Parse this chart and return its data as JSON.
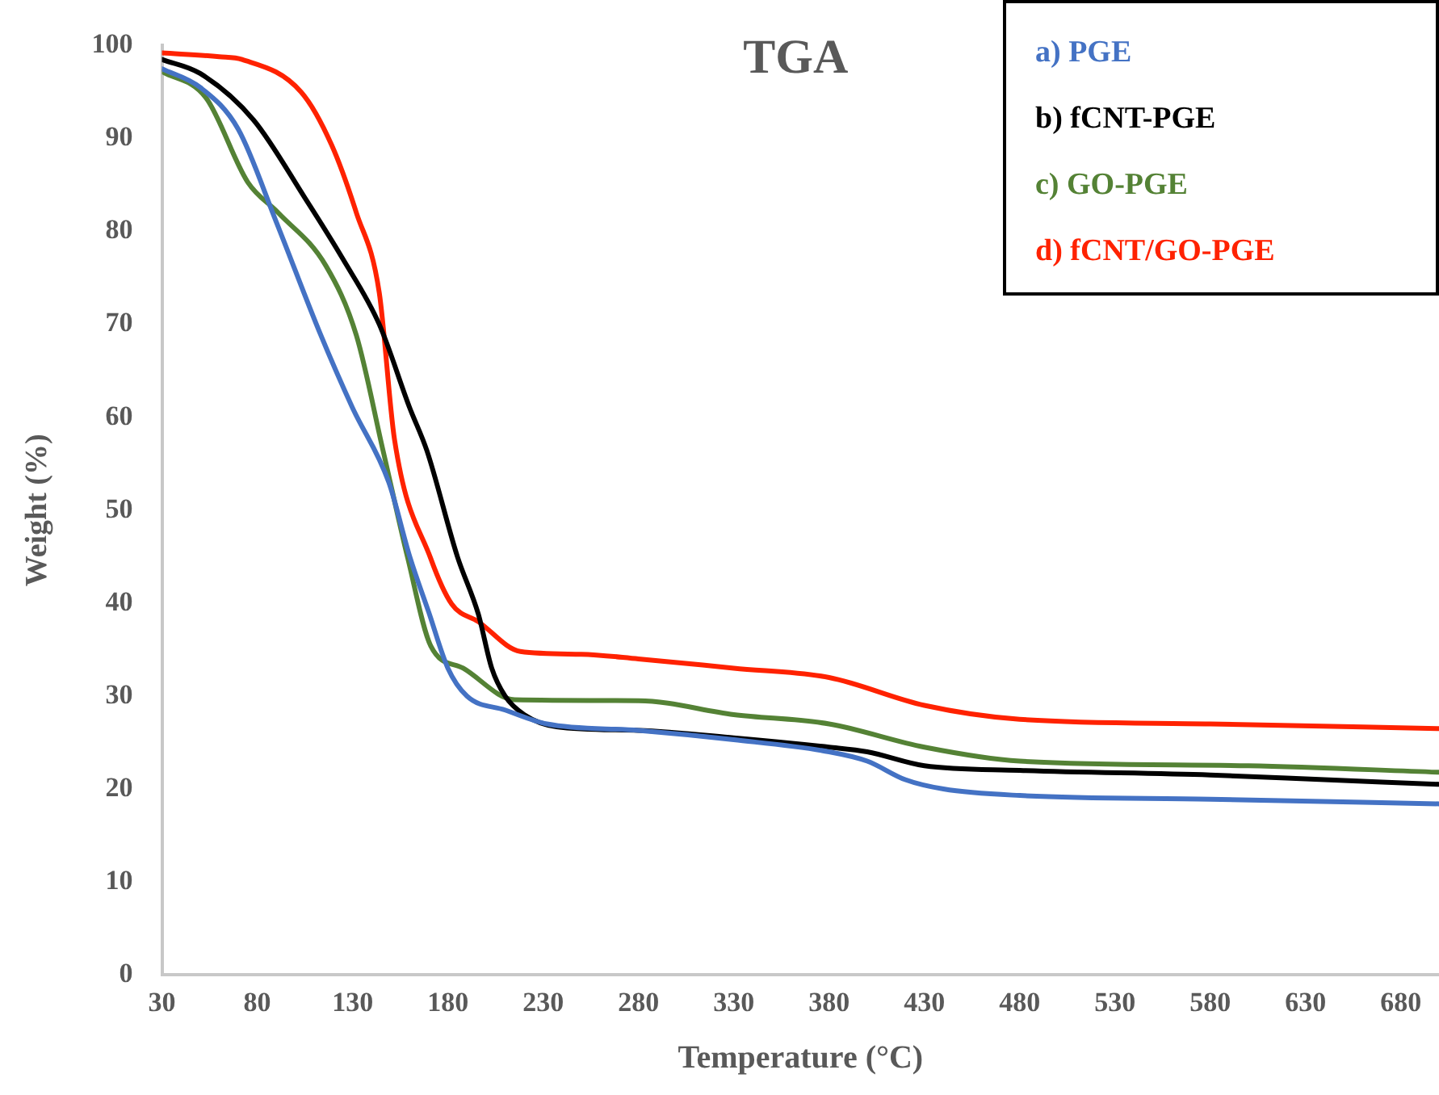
{
  "chart_data": {
    "type": "line",
    "title": "TGA",
    "xlabel": "Temperature (°C)",
    "ylabel": "Weight (%)",
    "xlim": [
      30,
      700
    ],
    "xticks": [
      30,
      80,
      130,
      180,
      230,
      280,
      330,
      380,
      430,
      480,
      530,
      580,
      630,
      680
    ],
    "ylim": [
      0,
      100
    ],
    "yticks": [
      0,
      10,
      20,
      30,
      40,
      50,
      60,
      70,
      80,
      90,
      100
    ],
    "grid": false,
    "legend": "top right",
    "marker": "none",
    "line_style": "solid",
    "series": [
      {
        "name": "a) PGE",
        "color": "#4472c4",
        "x": [
          30,
          50,
          70,
          90,
          113,
          130,
          149,
          160,
          170,
          180,
          190,
          210,
          232,
          280,
          330,
          380,
          400,
          420,
          440,
          480,
          580,
          700
        ],
        "values": [
          97.5,
          95.5,
          91,
          81,
          69,
          61,
          53,
          45,
          39,
          33,
          30,
          28.5,
          27,
          26.3,
          25.3,
          24,
          23,
          21,
          20,
          19.3,
          18.9,
          18.4
        ]
      },
      {
        "name": "b) fCNT-PGE",
        "color": "#000000",
        "x": [
          30,
          50,
          78,
          105,
          125,
          144,
          160,
          169,
          185,
          196,
          203,
          210,
          220,
          237,
          280,
          330,
          380,
          400,
          430,
          480,
          580,
          640,
          700
        ],
        "values": [
          98.5,
          97,
          92,
          83.6,
          77,
          70,
          61,
          56.4,
          45,
          38.8,
          33,
          30,
          28,
          26.7,
          26.3,
          25.5,
          24.5,
          24,
          22.5,
          22,
          21.5,
          21,
          20.5
        ]
      },
      {
        "name": "c) GO-PGE",
        "color": "#548235",
        "x": [
          30,
          53,
          75,
          91,
          116,
          132,
          146,
          159,
          171,
          188,
          215,
          280,
          330,
          380,
          430,
          480,
          600,
          700
        ],
        "values": [
          97.2,
          94.4,
          85.3,
          82,
          76.3,
          68.8,
          56.4,
          44.8,
          35.4,
          33,
          29.6,
          29.5,
          28,
          27,
          24.5,
          23,
          22.5,
          21.8
        ]
      },
      {
        "name": "d) fCNT/GO-PGE",
        "color": "#ff2200",
        "x": [
          30,
          60,
          72,
          103,
          119,
          132,
          144,
          152,
          171,
          182,
          196,
          218,
          250,
          280,
          330,
          380,
          430,
          480,
          580,
          700
        ],
        "values": [
          99.2,
          98.8,
          98.5,
          95,
          89.3,
          82,
          73.4,
          57.6,
          44.8,
          39.9,
          38,
          34.8,
          34.5,
          34,
          33,
          32,
          29,
          27.5,
          27,
          26.5
        ]
      }
    ]
  }
}
